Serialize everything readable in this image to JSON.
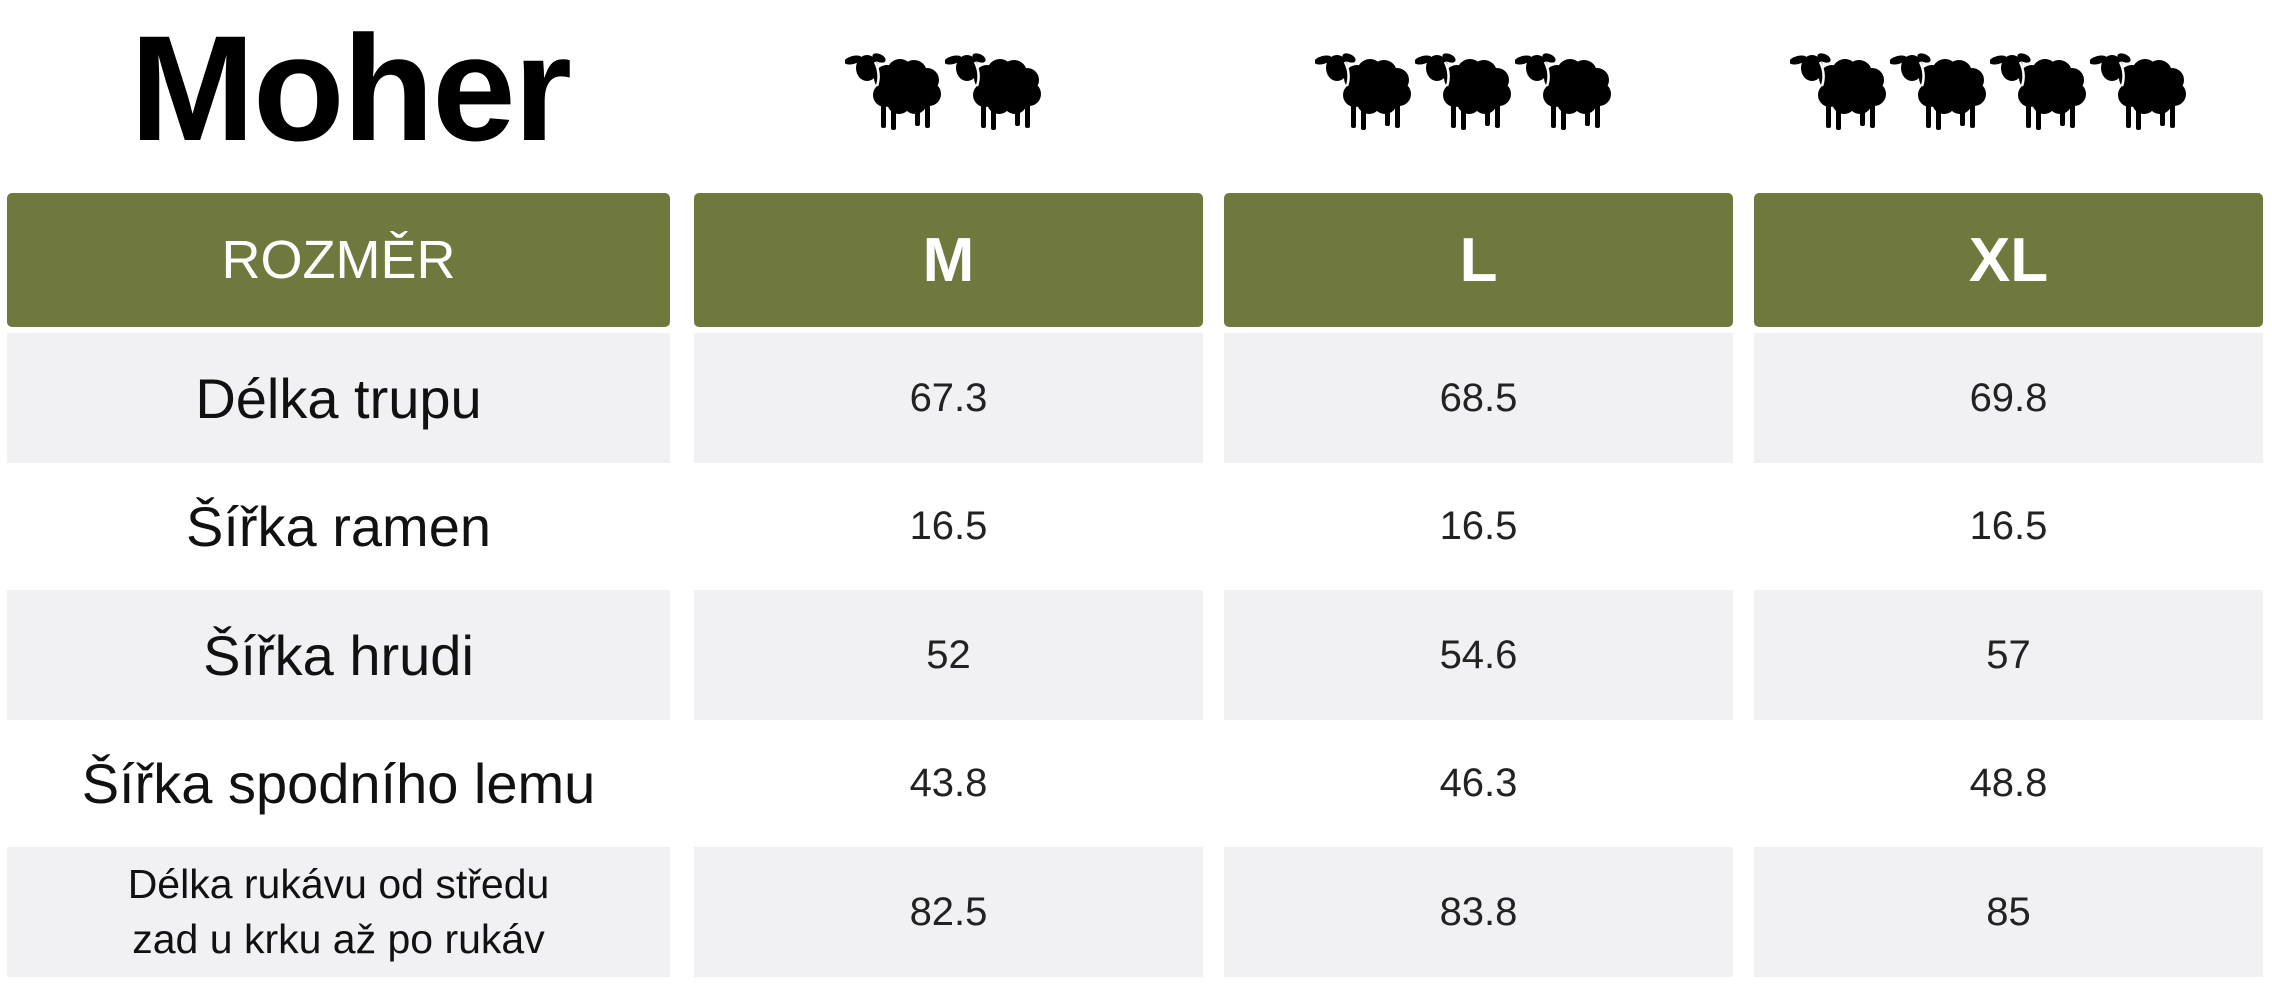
{
  "title": "Moher",
  "icon": "sheep-icon",
  "sheep_counts": {
    "M": 2,
    "L": 3,
    "XL": 4
  },
  "colors": {
    "header_bg": "#70793d",
    "row_alt_bg": "#f1f1f3",
    "header_text": "#ffffff"
  },
  "table": {
    "header": {
      "label": "ROZMĚR",
      "sizes": [
        "M",
        "L",
        "XL"
      ]
    },
    "rows": [
      {
        "label": "Délka trupu",
        "values": [
          "67.3",
          "68.5",
          "69.8"
        ]
      },
      {
        "label": "Šířka ramen",
        "values": [
          "16.5",
          "16.5",
          "16.5"
        ]
      },
      {
        "label": "Šířka hrudi",
        "values": [
          "52",
          "54.6",
          "57"
        ]
      },
      {
        "label": "Šířka spodního lemu",
        "values": [
          "43.8",
          "46.3",
          "48.8"
        ]
      },
      {
        "label_line1": "Délka rukávu od středu",
        "label_line2": "zad u krku až po rukáv",
        "values": [
          "82.5",
          "83.8",
          "85"
        ]
      }
    ]
  }
}
